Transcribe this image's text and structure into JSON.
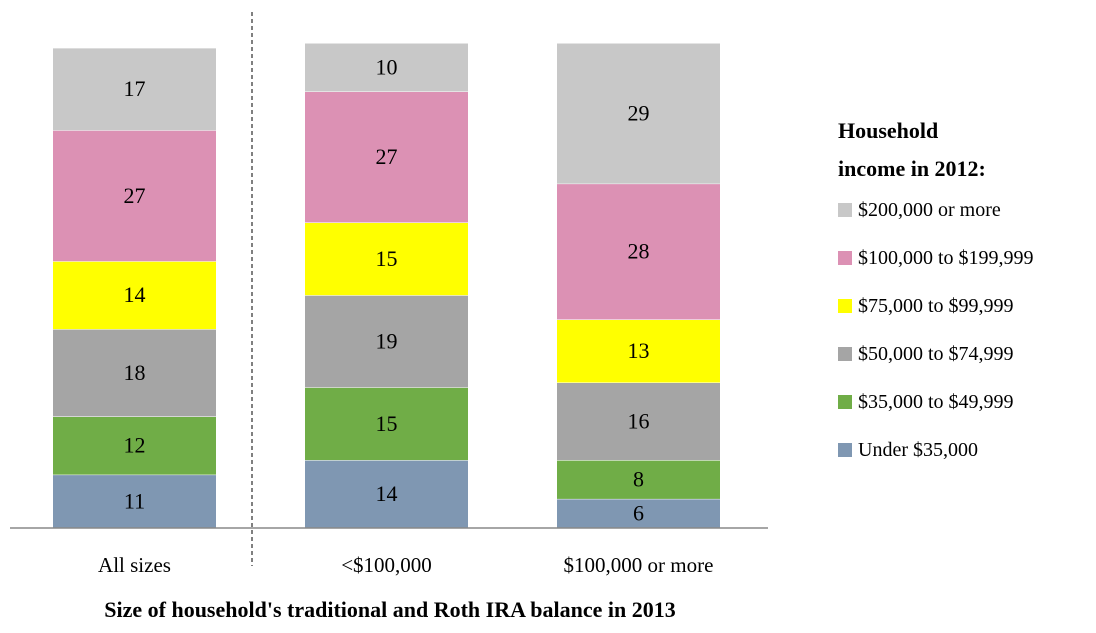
{
  "chart_data": {
    "type": "stacked-bar",
    "categories": [
      "All sizes",
      "<$100,000",
      "$100,000 or more"
    ],
    "series": [
      {
        "name": "Under $35,000",
        "color": "#7f97b2",
        "values": [
          11,
          14,
          6
        ]
      },
      {
        "name": "$35,000 to $49,999",
        "color": "#70ad47",
        "values": [
          12,
          15,
          8
        ]
      },
      {
        "name": "$50,000 to $74,999",
        "color": "#a5a5a5",
        "values": [
          18,
          19,
          16
        ]
      },
      {
        "name": "$75,000 to $99,999",
        "color": "#ffff00",
        "values": [
          14,
          15,
          13
        ]
      },
      {
        "name": "$100,000 to $199,999",
        "color": "#dc91b4",
        "values": [
          27,
          27,
          28
        ]
      },
      {
        "name": "$200,000 or more",
        "color": "#c8c8c8",
        "values": [
          17,
          10,
          29
        ]
      }
    ],
    "ylim": [
      0,
      100
    ],
    "legend_title": "Household income in 2012:",
    "x_label": "Size of household's traditional and Roth IRA balance in 2013"
  }
}
